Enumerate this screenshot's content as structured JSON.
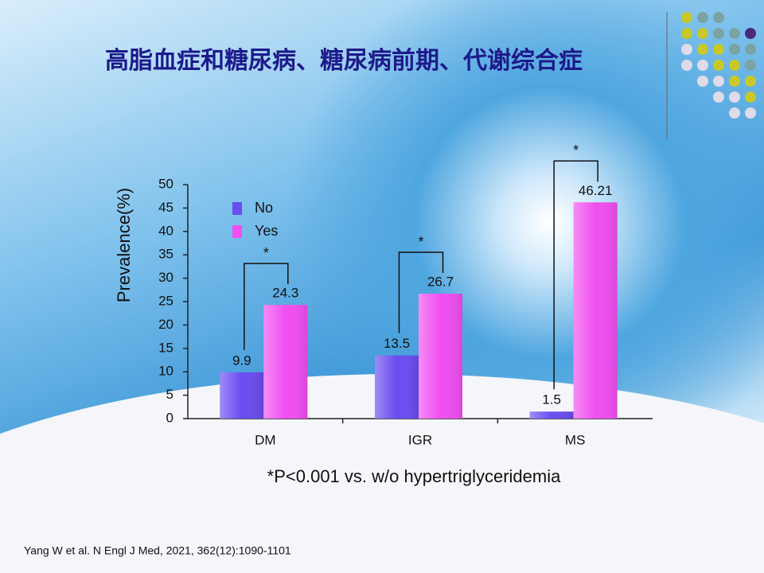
{
  "chart_data": {
    "type": "bar",
    "title": "高脂血症和糖尿病、糖尿病前期、代谢综合症",
    "ylabel": "Prevalence(%)",
    "categories": [
      "DM",
      "IGR",
      "MS"
    ],
    "series": [
      {
        "name": "No",
        "color": "#6a4cf0",
        "values": [
          9.9,
          13.5,
          1.5
        ]
      },
      {
        "name": "Yes",
        "color": "#f04ef0",
        "values": [
          24.3,
          26.7,
          46.21
        ]
      }
    ],
    "ylim": [
      0,
      50
    ],
    "yticks": [
      0,
      5,
      10,
      15,
      20,
      25,
      30,
      35,
      40,
      45,
      50
    ],
    "legend": "upper-left",
    "annotations": [
      "*",
      "*",
      "*"
    ],
    "footnote": "*P<0.001 vs. w/o hypertriglyceridemia",
    "source": "Yang W et al. N Engl J Med, 2021, 362(12):1090-1101"
  }
}
